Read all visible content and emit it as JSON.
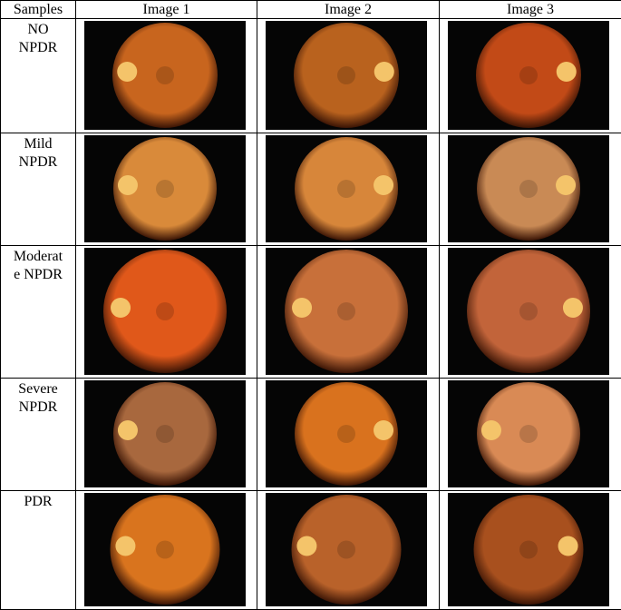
{
  "table": {
    "header": [
      "Samples",
      "Image 1",
      "Image 2",
      "Image 3"
    ],
    "rows": [
      {
        "label": [
          "NO",
          "NPDR"
        ]
      },
      {
        "label": [
          "Mild",
          "NPDR"
        ]
      },
      {
        "label": [
          "Moderat",
          "e NPDR"
        ]
      },
      {
        "label": [
          "Severe",
          "NPDR"
        ]
      },
      {
        "label": [
          "PDR"
        ]
      }
    ]
  }
}
